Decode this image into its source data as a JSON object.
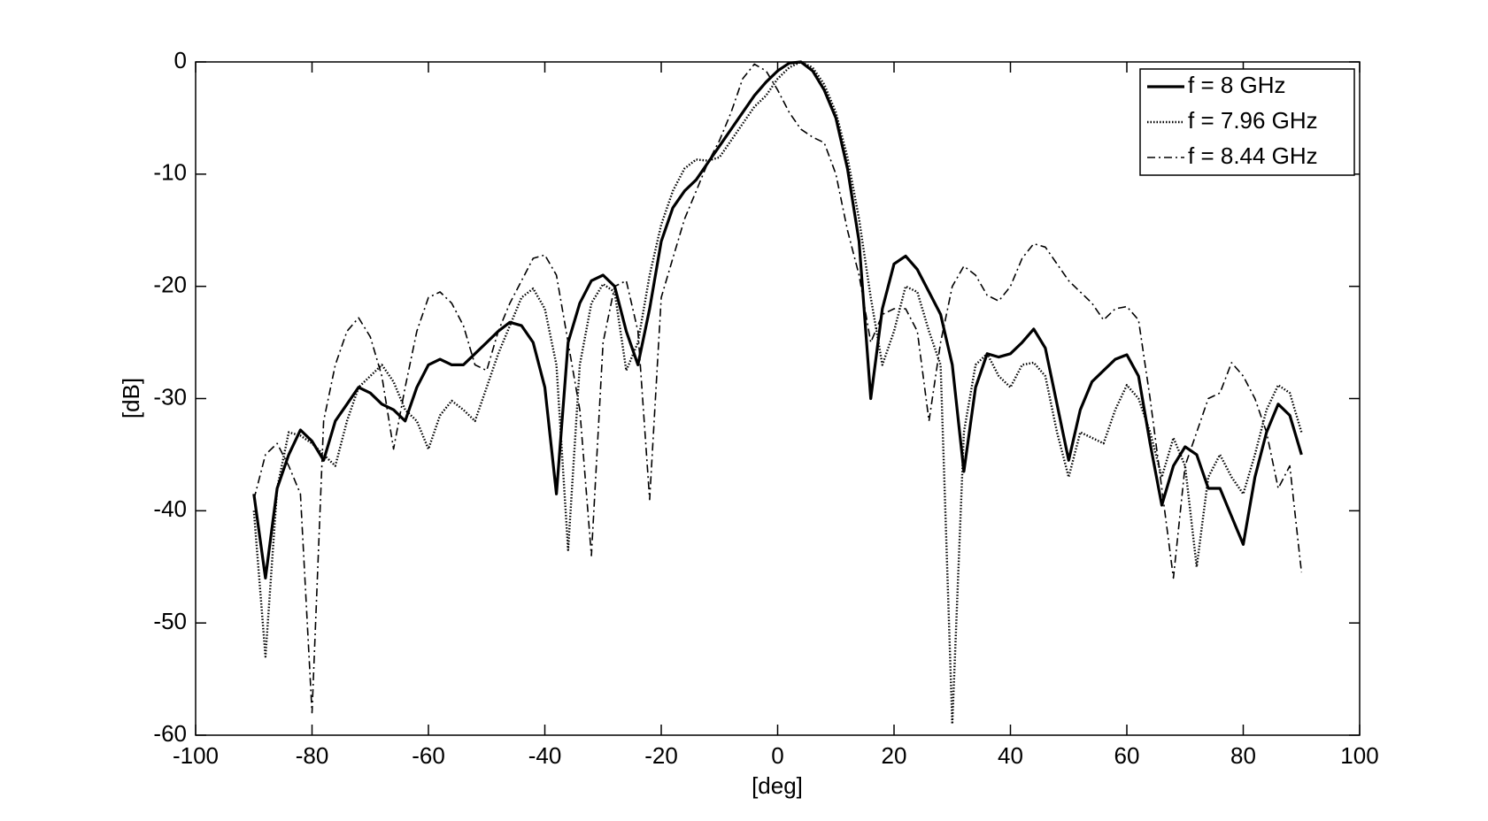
{
  "chart_data": {
    "type": "line",
    "xlabel": "[deg]",
    "ylabel": "[dB]",
    "x": [
      -90,
      -88,
      -86,
      -84,
      -82,
      -80,
      -78,
      -76,
      -74,
      -72,
      -70,
      -68,
      -66,
      -64,
      -62,
      -60,
      -58,
      -56,
      -54,
      -52,
      -50,
      -48,
      -46,
      -44,
      -42,
      -40,
      -38,
      -36,
      -34,
      -32,
      -30,
      -28,
      -26,
      -24,
      -22,
      -20,
      -18,
      -16,
      -14,
      -12,
      -10,
      -8,
      -6,
      -4,
      -2,
      0,
      2,
      4,
      6,
      8,
      10,
      12,
      14,
      16,
      18,
      20,
      22,
      24,
      26,
      28,
      30,
      32,
      34,
      36,
      38,
      40,
      42,
      44,
      46,
      48,
      50,
      52,
      54,
      56,
      58,
      60,
      62,
      64,
      66,
      68,
      70,
      72,
      74,
      76,
      78,
      80,
      82,
      84,
      86,
      88,
      90
    ],
    "series": [
      {
        "name": "f = 8 GHz",
        "color": "#000000",
        "style": "solid",
        "values": [
          -38.5,
          -46,
          -38,
          -35,
          -32.8,
          -33.8,
          -35.5,
          -32,
          -30.5,
          -29,
          -29.5,
          -30.5,
          -31,
          -32,
          -29,
          -27,
          -26.5,
          -27,
          -27,
          -26,
          -25,
          -24,
          -23.2,
          -23.5,
          -25,
          -29,
          -38.5,
          -25,
          -21.5,
          -19.5,
          -19,
          -20,
          -24,
          -27,
          -22,
          -16,
          -13,
          -11.5,
          -10.5,
          -9,
          -7.5,
          -6,
          -4.5,
          -3,
          -1.8,
          -0.8,
          -0.1,
          0,
          -0.8,
          -2.5,
          -5,
          -9.5,
          -16,
          -30,
          -22,
          -18,
          -17.3,
          -18.5,
          -20.5,
          -22.5,
          -27,
          -36.5,
          -29,
          -26,
          -26.3,
          -26,
          -25,
          -23.8,
          -25.5,
          -30.5,
          -35.5,
          -31,
          -28.5,
          -27.5,
          -26.5,
          -26.1,
          -28,
          -34,
          -39.5,
          -36,
          -34.3,
          -35,
          -38,
          -38,
          -40.5,
          -43,
          -37,
          -33,
          -30.5,
          -31.5,
          -35
        ]
      },
      {
        "name": "f = 7.96 GHz",
        "color": "#000000",
        "style": "dotted",
        "values": [
          -40,
          -53,
          -38,
          -33,
          -33.3,
          -34,
          -35,
          -36,
          -32,
          -29,
          -28,
          -27,
          -28.5,
          -31,
          -32,
          -34.5,
          -31.5,
          -30.2,
          -31,
          -32,
          -29,
          -26,
          -23.5,
          -21,
          -20.2,
          -22,
          -27,
          -43.5,
          -27,
          -21.5,
          -19.8,
          -20.5,
          -27.5,
          -25,
          -19,
          -14.5,
          -11.5,
          -9.5,
          -8.7,
          -8.8,
          -8.5,
          -7,
          -5.5,
          -4,
          -3,
          -1.5,
          -0.5,
          0,
          -0.5,
          -2,
          -4.5,
          -8.5,
          -14,
          -21,
          -27,
          -24,
          -20,
          -20.5,
          -24,
          -27,
          -59,
          -33,
          -27,
          -26,
          -28,
          -29,
          -27,
          -26.8,
          -28,
          -33,
          -37,
          -33,
          -33.5,
          -34,
          -31,
          -28.8,
          -30,
          -33,
          -37,
          -33.5,
          -36,
          -45,
          -37,
          -35,
          -37,
          -38.5,
          -35,
          -31,
          -28.8,
          -29.5,
          -33
        ]
      },
      {
        "name": "f = 8.44 GHz",
        "color": "#000000",
        "style": "dashdot",
        "values": [
          -39,
          -35,
          -34,
          -36,
          -38.5,
          -58,
          -32,
          -27,
          -24,
          -22.8,
          -24.5,
          -28,
          -34.5,
          -29,
          -24,
          -21,
          -20.5,
          -21.5,
          -23.5,
          -27,
          -27.5,
          -24,
          -21.5,
          -19.5,
          -17.5,
          -17.2,
          -19,
          -25,
          -31,
          -44,
          -25,
          -20,
          -19.5,
          -24,
          -39,
          -21,
          -17.5,
          -14,
          -11.5,
          -9,
          -7,
          -4.5,
          -1.5,
          -0.2,
          -0.8,
          -2.5,
          -4.5,
          -6,
          -6.7,
          -7.2,
          -10,
          -15,
          -19,
          -25,
          -22.5,
          -22,
          -22,
          -24,
          -32,
          -25,
          -20,
          -18.2,
          -19,
          -20.8,
          -21.3,
          -20,
          -17.5,
          -16.2,
          -16.5,
          -18,
          -19.5,
          -20.5,
          -21.5,
          -23,
          -22,
          -21.8,
          -23,
          -30,
          -38,
          -46,
          -36,
          -33,
          -30,
          -29.5,
          -26.8,
          -28,
          -30,
          -33,
          -38,
          -36,
          -45.5
        ]
      }
    ],
    "xlim": [
      -100,
      100
    ],
    "xticks": [
      -100,
      -80,
      -60,
      -40,
      -20,
      0,
      20,
      40,
      60,
      80,
      100
    ],
    "ylim": [
      -60,
      0
    ],
    "yticks": [
      -60,
      -50,
      -40,
      -30,
      -20,
      -10,
      0
    ],
    "legend": "upper right"
  }
}
